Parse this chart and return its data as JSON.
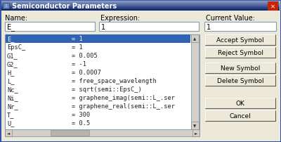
{
  "title": "Semiconductor Parameters",
  "bg_color": "#d4d0c8",
  "dialog_bg": "#ece9d8",
  "titlebar_gradient_top": "#0a246a",
  "titlebar_gradient_bot": "#a6b5d7",
  "titlebar_text_color": "#ffffff",
  "close_btn_color": "#cc3333",
  "name_label": "Name:",
  "expression_label": "Expression:",
  "current_value_label": "Current Value:",
  "name_field_text": "E_",
  "expression_field_text": "1",
  "current_value_text": "1",
  "list_items": [
    [
      "E_",
      "= 1"
    ],
    [
      "EpsC_",
      "= 1"
    ],
    [
      "G1_",
      "= 0.005"
    ],
    [
      "G2_",
      "= -1"
    ],
    [
      "H_",
      "= 0.0007"
    ],
    [
      "L_",
      "= free_space_wavelength"
    ],
    [
      "Nc_",
      "= sqrt(semi::EpsC_)"
    ],
    [
      "Ni_",
      "= graphene_imag(semi::L_.ser"
    ],
    [
      "Nr_",
      "= graphene_real(semi::L_.ser"
    ],
    [
      "T_",
      "= 300"
    ],
    [
      "U_",
      "= 0.5"
    ]
  ],
  "selected_index": 0,
  "selected_bg": "#3163b5",
  "selected_text_color": "#ffffff",
  "list_bg": "#ffffff",
  "list_text_color": "#222222",
  "button_labels": [
    "Accept Symbol",
    "Reject Symbol",
    "New Symbol",
    "Delete Symbol",
    "OK",
    "Cancel"
  ],
  "button_bg": "#ece9d8",
  "button_border": "#888888",
  "field_bg": "#ffffff",
  "field_border": "#7f9db9",
  "scrollbar_bg": "#d4d0c8",
  "border_color": "#888888",
  "outer_border": "#0a246a",
  "inner_bg": "#ece9d8"
}
